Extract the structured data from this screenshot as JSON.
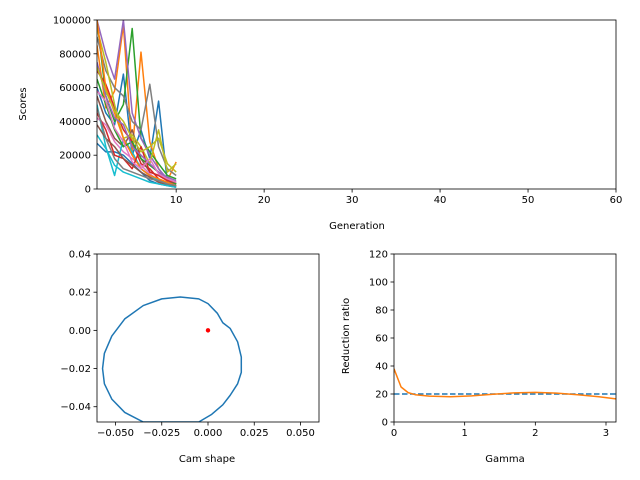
{
  "chart_data": [
    {
      "type": "line",
      "xlabel": "Generation",
      "ylabel": "Scores",
      "xlim": [
        1,
        60
      ],
      "ylim": [
        0,
        100000
      ],
      "x_ticks": [
        10,
        20,
        30,
        40,
        50,
        60
      ],
      "x_tick_labels": [
        "10",
        "20",
        "30",
        "40",
        "50",
        "60"
      ],
      "y_ticks": [
        0,
        20000,
        40000,
        60000,
        80000,
        100000
      ],
      "y_tick_labels": [
        "0",
        "20000",
        "40000",
        "60000",
        "80000",
        "100000"
      ],
      "grid": false,
      "x": [
        1,
        2,
        3,
        4,
        5,
        6,
        7,
        8,
        9,
        10
      ],
      "series": [
        {
          "color": "#1f77b4",
          "values": [
            60000,
            45000,
            38000,
            68000,
            20000,
            35000,
            18000,
            52000,
            4000,
            3000
          ]
        },
        {
          "color": "#ff7f0e",
          "values": [
            85000,
            48000,
            58000,
            97000,
            22000,
            81000,
            28000,
            12000,
            5000,
            16000
          ]
        },
        {
          "color": "#2ca02c",
          "values": [
            100000,
            55000,
            40000,
            50000,
            95000,
            30000,
            22000,
            15000,
            8000,
            6000
          ]
        },
        {
          "color": "#d62728",
          "values": [
            70000,
            62000,
            48000,
            35000,
            28000,
            15000,
            12000,
            6000,
            3000,
            2000
          ]
        },
        {
          "color": "#9467bd",
          "values": [
            100000,
            80000,
            65000,
            100000,
            45000,
            30000,
            20000,
            12000,
            6000,
            4000
          ]
        },
        {
          "color": "#8c564b",
          "values": [
            55000,
            40000,
            30000,
            25000,
            35000,
            18000,
            10000,
            8000,
            5000,
            3000
          ]
        },
        {
          "color": "#e377c2",
          "values": [
            42000,
            38000,
            28000,
            22000,
            18000,
            14000,
            9000,
            5000,
            3000,
            2000
          ]
        },
        {
          "color": "#7f7f7f",
          "values": [
            90000,
            70000,
            60000,
            55000,
            40000,
            35000,
            62000,
            25000,
            12000,
            8000
          ]
        },
        {
          "color": "#bcbd22",
          "values": [
            95000,
            75000,
            50000,
            30000,
            32000,
            25000,
            15000,
            35000,
            10000,
            15000
          ]
        },
        {
          "color": "#17becf",
          "values": [
            50000,
            25000,
            8000,
            30000,
            22000,
            12000,
            8000,
            5000,
            3000,
            2000
          ]
        },
        {
          "color": "#1f77b4",
          "values": [
            27000,
            22000,
            22000,
            20000,
            15000,
            10000,
            5000,
            3000,
            2000,
            1000
          ]
        },
        {
          "color": "#ff7f0e",
          "values": [
            100000,
            60000,
            45000,
            30000,
            20000,
            12000,
            8000,
            6000,
            4000,
            2000
          ]
        },
        {
          "color": "#2ca02c",
          "values": [
            65000,
            50000,
            35000,
            25000,
            28000,
            18000,
            14000,
            10000,
            6000,
            3000
          ]
        },
        {
          "color": "#d62728",
          "values": [
            45000,
            35000,
            20000,
            18000,
            12000,
            25000,
            10000,
            8000,
            5000,
            4000
          ]
        },
        {
          "color": "#9467bd",
          "values": [
            75000,
            55000,
            42000,
            38000,
            25000,
            20000,
            15000,
            10000,
            7000,
            5000
          ]
        },
        {
          "color": "#8c564b",
          "values": [
            38000,
            30000,
            25000,
            18000,
            14000,
            10000,
            7000,
            4000,
            2500,
            1500
          ]
        },
        {
          "color": "#e377c2",
          "values": [
            58000,
            52000,
            36000,
            28000,
            16000,
            12000,
            18000,
            9000,
            6000,
            4000
          ]
        },
        {
          "color": "#7f7f7f",
          "values": [
            48000,
            30000,
            18000,
            12000,
            10000,
            8000,
            6000,
            5000,
            3000,
            2000
          ]
        },
        {
          "color": "#bcbd22",
          "values": [
            72000,
            58000,
            46000,
            40000,
            30000,
            22000,
            25000,
            30000,
            15000,
            10000
          ]
        },
        {
          "color": "#17becf",
          "values": [
            32000,
            24000,
            14000,
            10000,
            8000,
            6000,
            4000,
            3000,
            2000,
            1000
          ]
        }
      ]
    },
    {
      "type": "line",
      "xlabel": "Cam shape",
      "ylabel": "",
      "xlim": [
        -0.06,
        0.06
      ],
      "ylim": [
        -0.048,
        0.04
      ],
      "x_ticks": [
        -0.05,
        -0.025,
        0.0,
        0.025,
        0.05
      ],
      "x_tick_labels": [
        "−0.050",
        "−0.025",
        "0.000",
        "0.025",
        "0.050"
      ],
      "y_ticks": [
        -0.04,
        -0.02,
        0.0,
        0.02,
        0.04
      ],
      "y_tick_labels": [
        "−0.04",
        "−0.02",
        "0.00",
        "0.02",
        "0.04"
      ],
      "grid": false,
      "series": [
        {
          "color": "#1f77b4",
          "x": [
            -0.035,
            -0.045,
            -0.052,
            -0.056,
            -0.057,
            -0.056,
            -0.052,
            -0.045,
            -0.035,
            -0.025,
            -0.015,
            -0.005,
            0.0,
            0.005,
            0.008,
            0.012,
            0.016,
            0.018,
            0.018,
            0.016,
            0.012,
            0.008,
            0.002,
            -0.005
          ],
          "y": [
            -0.048,
            -0.043,
            -0.036,
            -0.028,
            -0.02,
            -0.012,
            -0.003,
            0.006,
            0.013,
            0.0165,
            0.0175,
            0.0165,
            0.014,
            0.009,
            0.004,
            0.001,
            -0.006,
            -0.014,
            -0.022,
            -0.028,
            -0.034,
            -0.039,
            -0.044,
            -0.048
          ]
        }
      ],
      "points": [
        {
          "color": "#ff0000",
          "x": 0.0,
          "y": 0.0
        }
      ]
    },
    {
      "type": "line",
      "xlabel": "Gamma",
      "ylabel": "Reduction ratio",
      "xlim": [
        0,
        3.14159
      ],
      "ylim": [
        0,
        120
      ],
      "x_ticks": [
        0,
        1,
        2,
        3
      ],
      "x_tick_labels": [
        "0",
        "1",
        "2",
        "3"
      ],
      "y_ticks": [
        0,
        20,
        40,
        60,
        80,
        100,
        120
      ],
      "y_tick_labels": [
        "0",
        "20",
        "40",
        "60",
        "80",
        "100",
        "120"
      ],
      "grid": false,
      "series": [
        {
          "color": "#1f77b4",
          "dashed": true,
          "x": [
            0,
            3.14159
          ],
          "y": [
            20,
            20
          ]
        },
        {
          "color": "#ff7f0e",
          "dashed": false,
          "x": [
            0.0,
            0.1,
            0.2,
            0.3,
            0.5,
            0.8,
            1.1,
            1.4,
            1.7,
            2.0,
            2.3,
            2.6,
            2.9,
            3.14
          ],
          "y": [
            38,
            25,
            21,
            19.5,
            18.5,
            18,
            18.7,
            19.8,
            20.8,
            21.2,
            20.6,
            19.5,
            18,
            16.5
          ]
        }
      ]
    }
  ]
}
